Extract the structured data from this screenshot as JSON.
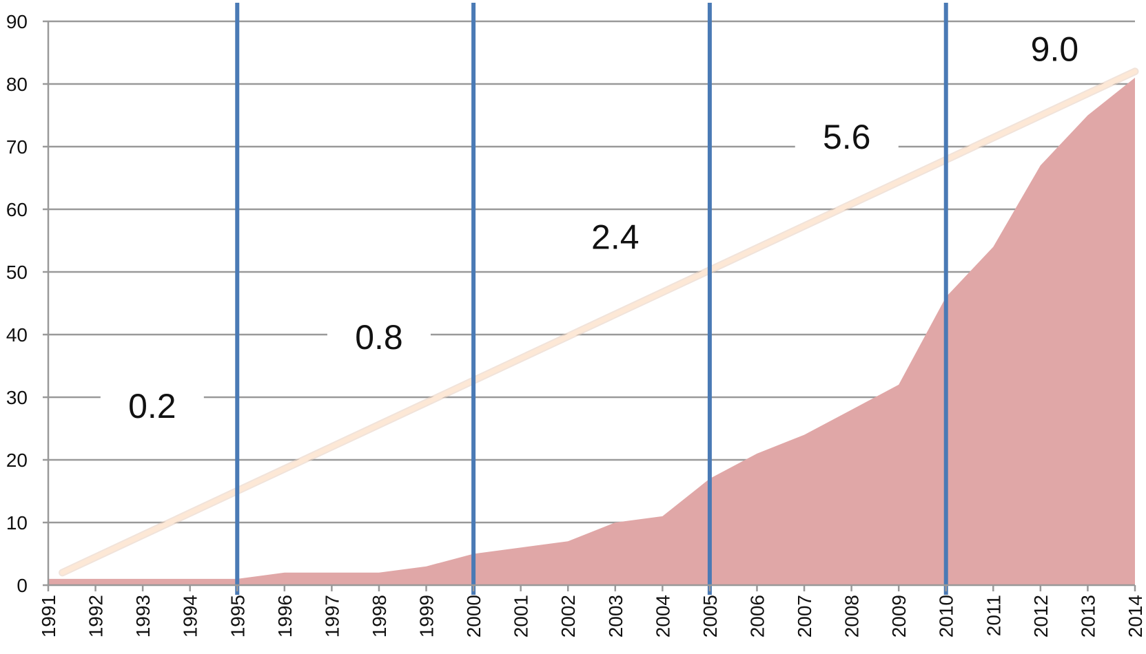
{
  "chart_data": {
    "type": "area",
    "title": "",
    "xlabel": "",
    "ylabel": "",
    "x": [
      "1991",
      "1992",
      "1993",
      "1994",
      "1995",
      "1996",
      "1997",
      "1998",
      "1999",
      "2000",
      "2001",
      "2002",
      "2003",
      "2004",
      "2005",
      "2006",
      "2007",
      "2008",
      "2009",
      "2010",
      "2011",
      "2012",
      "2013",
      "2014"
    ],
    "series": [
      {
        "type": "area",
        "values": [
          1,
          1,
          1,
          1,
          1,
          2,
          2,
          2,
          3,
          5,
          6,
          7,
          10,
          11,
          17,
          21,
          24,
          28,
          32,
          46,
          54,
          67,
          75,
          81
        ],
        "color": "#e0a7a7"
      }
    ],
    "trend_line": {
      "from": [
        1991.3,
        2
      ],
      "to": [
        2014,
        82
      ],
      "color": "#fde8d6"
    },
    "vertical_markers": [
      "1995",
      "2000",
      "2005",
      "2010"
    ],
    "marker_color": "#4a7ab5",
    "period_labels": [
      {
        "text": "0.2",
        "x": 1993.2,
        "y": 28
      },
      {
        "text": "0.8",
        "x": 1998.0,
        "y": 39
      },
      {
        "text": "2.4",
        "x": 2003.0,
        "y": 55
      },
      {
        "text": "5.6",
        "x": 2007.9,
        "y": 71
      },
      {
        "text": "9.0",
        "x": 2012.3,
        "y": 85
      }
    ],
    "ylim": [
      0,
      90
    ],
    "yticks": [
      0,
      10,
      20,
      30,
      40,
      50,
      60,
      70,
      80,
      90
    ],
    "grid": true,
    "grid_color": "#999999"
  }
}
